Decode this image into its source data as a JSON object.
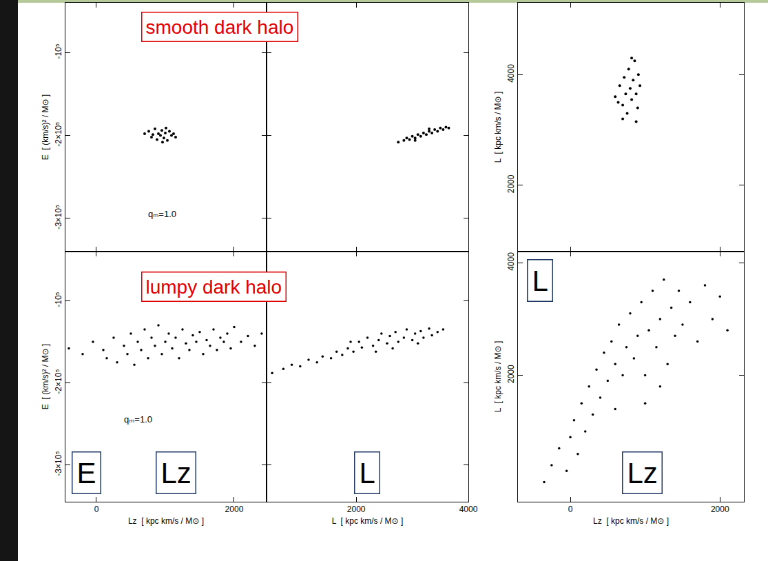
{
  "chart_data": [
    {
      "type": "scatter",
      "title": "smooth dark halo",
      "annotations": [
        "qₘ=1.0"
      ],
      "ylabel": "E  [ (km/s)² / M⊙ ]",
      "x": [
        700,
        760,
        800,
        850,
        880,
        900,
        930,
        950,
        980,
        1000,
        1030,
        1060,
        1090,
        1120,
        1150,
        820,
        960,
        1010
      ],
      "values": [
        -198000,
        -195000,
        -202000,
        -192000,
        -205000,
        -198000,
        -200000,
        -194000,
        -203000,
        -197000,
        -206000,
        -195000,
        -200000,
        -198000,
        -202000,
        -199000,
        -208000,
        -191000
      ],
      "xlim": [
        -450,
        2470
      ],
      "ylim": [
        -340000,
        -40000
      ],
      "xticks": [
        0,
        2000
      ],
      "yticks": [
        {
          "value": -100000,
          "label": "-10⁵"
        },
        {
          "value": -200000,
          "label": "-2×10⁵"
        },
        {
          "value": -300000,
          "label": "-3×10⁵"
        }
      ],
      "tick_labels": "y",
      "grid": false,
      "color": "#000000",
      "marker": "dot"
    },
    {
      "type": "scatter",
      "x": [
        2750,
        2850,
        2900,
        2950,
        3000,
        3050,
        3100,
        3150,
        3200,
        3250,
        3300,
        3350,
        3400,
        3450,
        3500,
        3550,
        3600,
        3650,
        3050,
        3300
      ],
      "values": [
        -208000,
        -206000,
        -203000,
        -205000,
        -201000,
        -203000,
        -199000,
        -201000,
        -197000,
        -199000,
        -195000,
        -197000,
        -193000,
        -195000,
        -191000,
        -193000,
        -190000,
        -191000,
        -206000,
        -192000
      ],
      "xlim": [
        400,
        4000
      ],
      "ylim": [
        -340000,
        -40000
      ],
      "xticks": [
        2000,
        4000
      ],
      "yticks": [
        {
          "value": -100000,
          "label": "-10⁵"
        },
        {
          "value": -200000,
          "label": "-2×10⁵"
        },
        {
          "value": -300000,
          "label": "-3×10⁵"
        }
      ],
      "tick_labels": false,
      "grid": false,
      "color": "#000000",
      "marker": "dot"
    },
    {
      "type": "scatter",
      "ylabel": "L  [ kpc km/s / M⊙ ]",
      "x": [
        600,
        640,
        660,
        700,
        720,
        740,
        760,
        780,
        800,
        820,
        840,
        860,
        880,
        900,
        910,
        930,
        700,
        820,
        880
      ],
      "values": [
        3600,
        3500,
        3800,
        3450,
        3950,
        3650,
        3300,
        4100,
        3750,
        3550,
        3900,
        4250,
        3650,
        3400,
        4000,
        3800,
        3200,
        4300,
        3150
      ],
      "xlim": [
        -700,
        2320
      ],
      "ylim": [
        800,
        5300
      ],
      "xticks": [
        0,
        2000
      ],
      "yticks": [
        2000,
        4000
      ],
      "tick_labels": "y",
      "grid": false,
      "color": "#000000",
      "marker": "dot"
    },
    {
      "type": "scatter",
      "title": "lumpy dark halo",
      "annotations": [
        "qₘ=1.0"
      ],
      "boxed_labels": [
        "E",
        "Lz"
      ],
      "xlabel": "Lz  [ kpc km/s / M⊙ ]",
      "ylabel": "E  [ (km/s)² / M⊙ ]",
      "x": [
        -400,
        -200,
        -50,
        100,
        150,
        250,
        300,
        400,
        450,
        500,
        550,
        600,
        650,
        700,
        750,
        800,
        850,
        900,
        950,
        1000,
        1050,
        1100,
        1150,
        1200,
        1250,
        1300,
        1350,
        1400,
        1450,
        1500,
        1550,
        1600,
        1650,
        1700,
        1750,
        1800,
        1850,
        1900,
        1950,
        2000,
        2100,
        2200,
        2300,
        2400
      ],
      "values": [
        -158000,
        -165000,
        -150000,
        -160000,
        -170000,
        -145000,
        -175000,
        -155000,
        -165000,
        -140000,
        -178000,
        -150000,
        -160000,
        -135000,
        -170000,
        -145000,
        -155000,
        -130000,
        -165000,
        -150000,
        -140000,
        -158000,
        -145000,
        -170000,
        -135000,
        -152000,
        -160000,
        -142000,
        -150000,
        -138000,
        -165000,
        -148000,
        -155000,
        -135000,
        -160000,
        -145000,
        -150000,
        -140000,
        -158000,
        -132000,
        -150000,
        -143000,
        -155000,
        -140000
      ],
      "xlim": [
        -450,
        2470
      ],
      "ylim": [
        -345000,
        -40000
      ],
      "xticks": [
        0,
        2000
      ],
      "yticks": [
        {
          "value": -100000,
          "label": "-10⁵"
        },
        {
          "value": -200000,
          "label": "-2×10⁵"
        },
        {
          "value": -300000,
          "label": "-3×10⁵"
        }
      ],
      "tick_labels": true,
      "grid": false,
      "color": "#000000",
      "marker": "dot"
    },
    {
      "type": "scatter",
      "boxed_labels": [
        "L"
      ],
      "xlabel": "L  [ kpc km/s / M⊙ ]",
      "x": [
        500,
        700,
        850,
        1000,
        1150,
        1300,
        1400,
        1550,
        1650,
        1750,
        1850,
        1950,
        2050,
        2100,
        2200,
        2300,
        2400,
        2450,
        2550,
        2600,
        2700,
        2750,
        2850,
        2900,
        3000,
        3050,
        3150,
        3200,
        3300,
        3350,
        3450,
        3550,
        2350,
        2650,
        1900,
        3100
      ],
      "values": [
        -188000,
        -183000,
        -178000,
        -180000,
        -172000,
        -175000,
        -168000,
        -170000,
        -162000,
        -166000,
        -158000,
        -162000,
        -150000,
        -157000,
        -145000,
        -155000,
        -148000,
        -140000,
        -152000,
        -143000,
        -138000,
        -150000,
        -145000,
        -135000,
        -148000,
        -140000,
        -137000,
        -145000,
        -134000,
        -142000,
        -138000,
        -135000,
        -162000,
        -158000,
        -150000,
        -152000
      ],
      "xlim": [
        400,
        4000
      ],
      "ylim": [
        -345000,
        -40000
      ],
      "xticks": [
        2000,
        4000
      ],
      "yticks": [
        {
          "value": -100000,
          "label": "-10⁵"
        },
        {
          "value": -200000,
          "label": "-2×10⁵"
        },
        {
          "value": -300000,
          "label": "-3×10⁵"
        }
      ],
      "tick_labels": "x",
      "grid": false,
      "color": "#000000",
      "marker": "dot"
    },
    {
      "type": "scatter",
      "boxed_labels": [
        "L",
        "Lz"
      ],
      "xlabel": "Lz  [ kpc km/s / M⊙ ]",
      "ylabel": "L  [ kpc km/s / M⊙ ]",
      "x": [
        -350,
        -250,
        -150,
        -50,
        0,
        50,
        100,
        150,
        200,
        250,
        300,
        350,
        400,
        450,
        500,
        550,
        600,
        650,
        700,
        750,
        800,
        850,
        900,
        950,
        1000,
        1050,
        1100,
        1150,
        1200,
        1250,
        1300,
        1350,
        1400,
        1450,
        1500,
        1600,
        1700,
        1800,
        1900,
        2000,
        2100,
        1000,
        600,
        1200
      ],
      "values": [
        100,
        400,
        700,
        300,
        900,
        1200,
        600,
        1500,
        1000,
        1800,
        1300,
        2100,
        1600,
        2400,
        1900,
        2600,
        2200,
        2900,
        2000,
        2500,
        3100,
        2300,
        2700,
        3300,
        2000,
        2800,
        3500,
        2500,
        3000,
        3700,
        2200,
        3200,
        2700,
        3500,
        2900,
        3300,
        2600,
        3600,
        3000,
        3400,
        2800,
        1500,
        1400,
        1800
      ],
      "xlim": [
        -700,
        2320
      ],
      "ylim": [
        -250,
        4200
      ],
      "xticks": [
        0,
        2000
      ],
      "yticks": [
        2000,
        4000
      ],
      "tick_labels": true,
      "grid": false,
      "color": "#000000",
      "marker": "dot"
    }
  ]
}
